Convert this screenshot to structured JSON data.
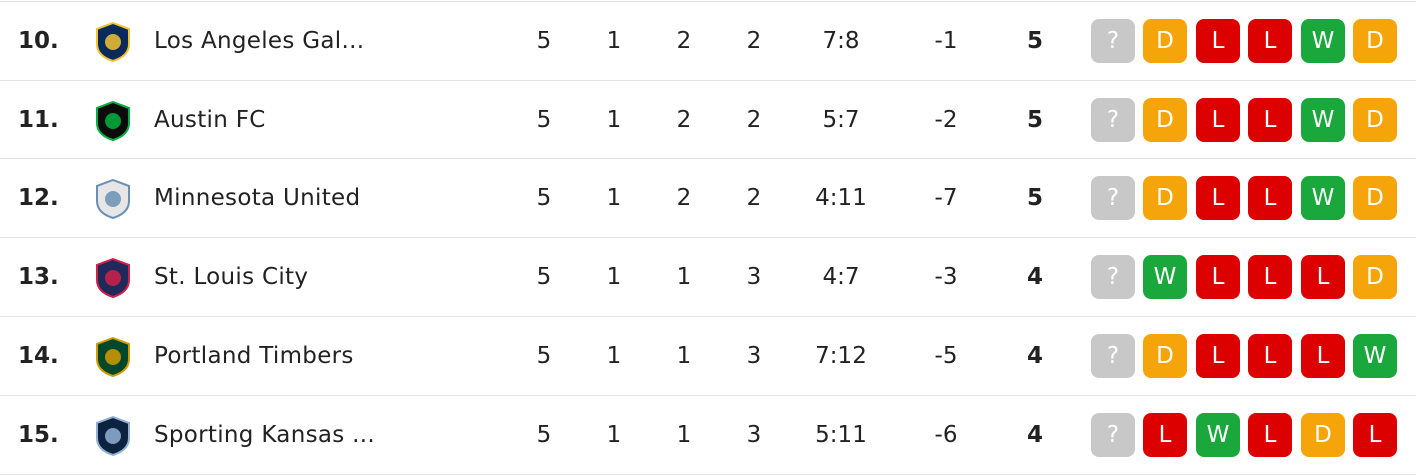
{
  "table": {
    "form_colors": {
      "?": "#c8c8c8",
      "W": "#1aa83c",
      "D": "#f5a50a",
      "L": "#dd0000"
    },
    "rows": [
      {
        "rank": "10.",
        "team": "Los Angeles Gal...",
        "played": "5",
        "wins": "1",
        "draws": "2",
        "losses": "2",
        "goals": "7:8",
        "diff": "-1",
        "points": "5",
        "form": [
          "?",
          "D",
          "L",
          "L",
          "W",
          "D"
        ]
      },
      {
        "rank": "11.",
        "team": "Austin FC",
        "played": "5",
        "wins": "1",
        "draws": "2",
        "losses": "2",
        "goals": "5:7",
        "diff": "-2",
        "points": "5",
        "form": [
          "?",
          "D",
          "L",
          "L",
          "W",
          "D"
        ]
      },
      {
        "rank": "12.",
        "team": "Minnesota United",
        "played": "5",
        "wins": "1",
        "draws": "2",
        "losses": "2",
        "goals": "4:11",
        "diff": "-7",
        "points": "5",
        "form": [
          "?",
          "D",
          "L",
          "L",
          "W",
          "D"
        ]
      },
      {
        "rank": "13.",
        "team": "St. Louis City",
        "played": "5",
        "wins": "1",
        "draws": "1",
        "losses": "3",
        "goals": "4:7",
        "diff": "-3",
        "points": "4",
        "form": [
          "?",
          "W",
          "L",
          "L",
          "L",
          "D"
        ]
      },
      {
        "rank": "14.",
        "team": "Portland Timbers",
        "played": "5",
        "wins": "1",
        "draws": "1",
        "losses": "3",
        "goals": "7:12",
        "diff": "-5",
        "points": "4",
        "form": [
          "?",
          "D",
          "L",
          "L",
          "L",
          "W"
        ]
      },
      {
        "rank": "15.",
        "team": "Sporting Kansas ...",
        "played": "5",
        "wins": "1",
        "draws": "1",
        "losses": "3",
        "goals": "5:11",
        "diff": "-6",
        "points": "4",
        "form": [
          "?",
          "L",
          "W",
          "L",
          "D",
          "L"
        ]
      }
    ]
  }
}
